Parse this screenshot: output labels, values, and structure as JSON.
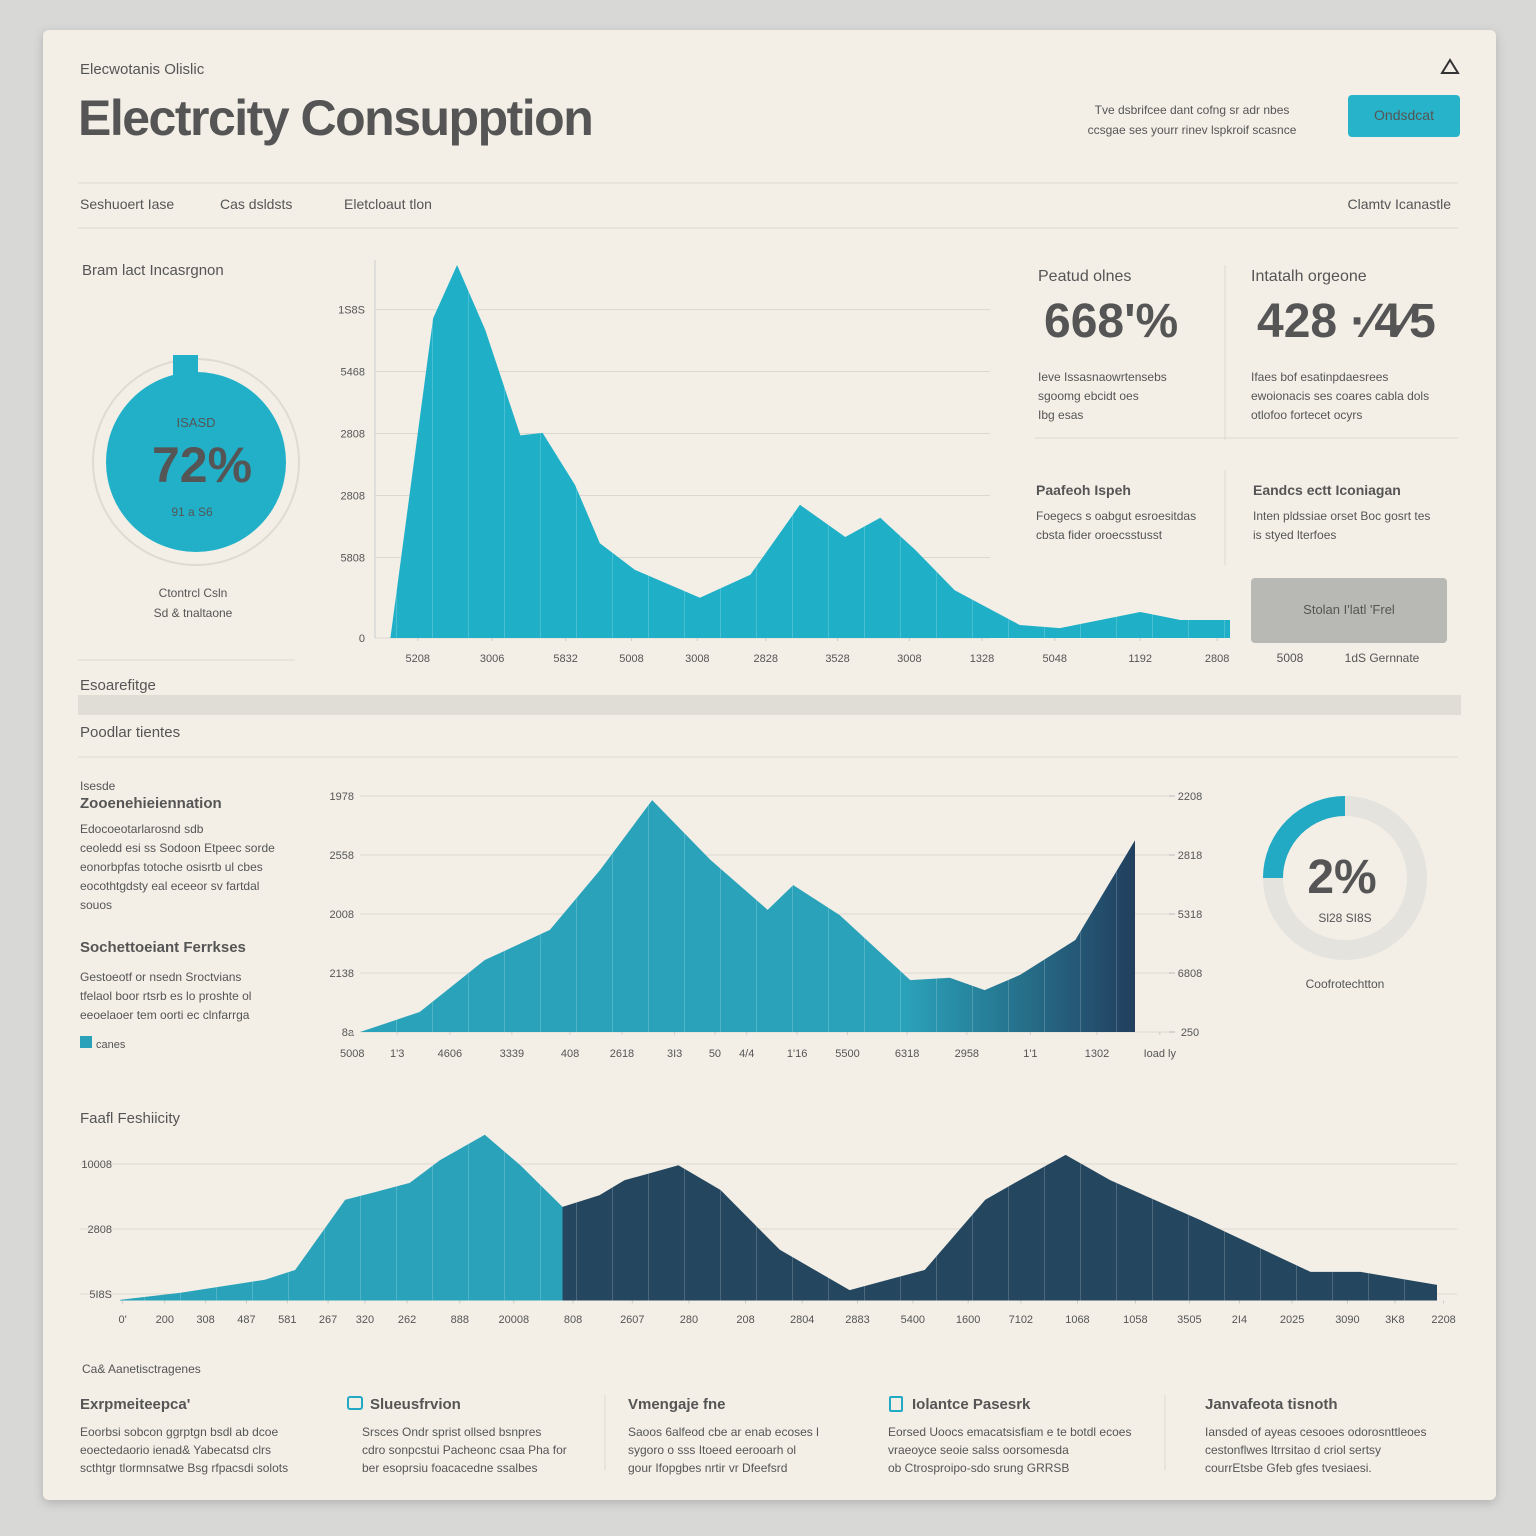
{
  "header": {
    "eyebrow": "Elecwotanis Olislic",
    "title": "Electrcity Consupption",
    "note": [
      "Tve dsbrifcee dant cofng sr adr nbes",
      "ccsgae ses yourr rinev lspkroif scasnce"
    ],
    "button": "Ondsdcat"
  },
  "nav": [
    "Seshuoert Iase",
    "Cas dsldsts",
    "Eletcloaut tlon",
    "Clamtv Icanastle"
  ],
  "left_panel": {
    "title": "Bram lact Incasrgnon",
    "gauge": {
      "label": "ISASD",
      "value": "72%",
      "sub": "91 a S6"
    },
    "caption": [
      "Ctontrcl Csln",
      "Sd & tnaltaone"
    ]
  },
  "stats": [
    {
      "label": "Peatud olnes",
      "value": "668'%",
      "desc": [
        "Ieve Issasnaowrtensebs",
        "sgoomg ebcidt oes",
        "Ibg esas"
      ]
    },
    {
      "label": "Intatalh orgeone",
      "value": "428 ·⁄4⁄5",
      "desc": [
        "Ifaes bof esatinpdaesrees",
        "ewoionacis ses coares cabla dols",
        "otlofoo fortecet ocyrs"
      ]
    }
  ],
  "features": [
    {
      "title": "Paafeoh Ispeh",
      "desc": [
        "Foegecs s oabgut esroesitdas",
        "cbsta fider oroecsstusst"
      ]
    },
    {
      "title": "Eandcs ectt Iconiagan",
      "desc": [
        "Inten pldssiae orset Boc gosrt tes",
        "is styed lterfoes"
      ]
    }
  ],
  "side_button": "Stolan I'latl 'Frel",
  "side_labels": [
    "5008",
    "1dS Gernnate"
  ],
  "section": {
    "label": "Esoarefitge",
    "subtitle": "Poodlar tientes"
  },
  "left_column": {
    "eyebrow": "Isesde",
    "heading": "Zooenehieiennation",
    "text": [
      "Edocoeotarlarosnd sdb",
      "ceoledd esi ss Sodoon Etpeec sorde",
      "eonorbpfas totoche osisrtb ul cbes",
      "eocothtgdsty eal eceeor sv fartdal",
      "souos"
    ],
    "heading2": "Sochettoeiant Ferrkses",
    "text2": [
      "Gestoeotf or nsedn Sroctvians",
      "tfelaol boor rtsrb es lo proshte ol",
      "eeoelaoer tem oorti ec clnfarrga"
    ],
    "legend": "canes"
  },
  "donut": {
    "value": "2%",
    "sub": "Sl28 SI8S",
    "caption": "Coofrotechtton"
  },
  "bottom_title": "Faafl Feshiicity",
  "footer": {
    "title": "Ca& Aanetisctragenes",
    "columns": [
      {
        "title": "Exrpmeiteepca'",
        "lines": [
          "Eoorbsi sobcon ggrptgn bsdl ab dcoe",
          "eoectedaorio ienad& Yabecatsd clrs",
          "scthtgr tlormnsatwe Bsg rfpacsdi solots"
        ]
      },
      {
        "title": "Slueusfrvion",
        "lines": [
          "Srsces Ondr sprist ollsed bsnpres",
          "cdro sonpcstui Pacheonc csaa Pha for",
          "ber esoprsiu foacacedne ssalbes"
        ]
      },
      {
        "title": "Vmengaje fne",
        "lines": [
          "Saoos 6alfeod cbe ar enab ecoses l",
          "sygoro o sss Itoeed eerooarh ol",
          "gour Ifopgbes nrtir vr Dfeefsrd"
        ]
      },
      {
        "title": "Iolantce Pasesrk",
        "lines": [
          "Eorsed Uoocs emacatsisfiam e te botdl ecoes",
          "vraeoyce seoie salss oorsomesda",
          "ob Ctrosproipo-sdo srung GRRSB"
        ]
      },
      {
        "title": "Janvafeota tisnoth",
        "lines": [
          "Iansded of ayeas cesooes odorosnttleoes",
          "cestonflwes ltrrsitao d criol sertsy",
          "courrEtsbe Gfeb gfes tvesiaesi."
        ]
      }
    ]
  },
  "chart_data": [
    {
      "type": "area",
      "color": "#1fb0c8",
      "grid": true,
      "xlim": [
        0,
        100
      ],
      "ylim": [
        0,
        6.1
      ],
      "x": [
        1.8,
        6.8,
        9.6,
        12.9,
        17,
        19.6,
        23.4,
        26.3,
        30.4,
        38,
        43.9,
        49.7,
        55,
        59.1,
        63.2,
        67.8,
        75.4,
        80.1,
        89.5,
        94.2,
        100
      ],
      "values": [
        0,
        5.16,
        6.02,
        4.97,
        3.27,
        3.31,
        2.47,
        1.53,
        1.1,
        0.65,
        1.02,
        2.15,
        1.63,
        1.94,
        1.42,
        0.77,
        0.21,
        0.16,
        0.42,
        0.29,
        0.29
      ],
      "yticks": [
        0,
        {
          "value": 1.3,
          "label": "5808"
        },
        {
          "value": 2.3,
          "label": "2808"
        },
        {
          "value": 3.3,
          "label": "2808"
        },
        {
          "value": 4.3,
          "label": "5468"
        },
        {
          "value": 5.3,
          "label": "1S8S"
        }
      ],
      "xticks": [
        {
          "value": 5,
          "label": "5208"
        },
        {
          "value": 13.7,
          "label": "3006"
        },
        {
          "value": 22.3,
          "label": "5832"
        },
        {
          "value": 30,
          "label": "5008"
        },
        {
          "value": 37.7,
          "label": "3008"
        },
        {
          "value": 45.7,
          "label": "2828"
        },
        {
          "value": 54.1,
          "label": "3528"
        },
        {
          "value": 62.5,
          "label": "3008"
        },
        {
          "value": 71,
          "label": "1328"
        },
        {
          "value": 79.5,
          "label": "5048"
        },
        {
          "value": 89.5,
          "label": "1192"
        },
        {
          "value": 98.5,
          "label": "2808"
        }
      ]
    },
    {
      "type": "area",
      "color": "#2aa3ba",
      "color_end": "#223f5e",
      "grid": true,
      "xlim": [
        0,
        100
      ],
      "ylim": [
        0,
        4
      ],
      "y2lim": [
        0,
        4
      ],
      "x": [
        0,
        7.7,
        16.1,
        24.5,
        31,
        37.7,
        45.2,
        52.6,
        55.9,
        61.9,
        71,
        76.1,
        80.6,
        85.2,
        92.3,
        100
      ],
      "values": [
        0,
        0.34,
        1.22,
        1.73,
        2.75,
        3.93,
        2.92,
        2.07,
        2.49,
        1.98,
        0.88,
        0.92,
        0.71,
        0.97,
        1.56,
        3.25
      ],
      "yticks": [
        {
          "value": 0,
          "label": "8a"
        },
        {
          "value": 1,
          "label": "2138"
        },
        {
          "value": 2,
          "label": "2008"
        },
        {
          "value": 3,
          "label": "2558"
        },
        {
          "value": 4,
          "label": "1978"
        }
      ],
      "y2ticks": [
        {
          "value": 0,
          "label": "250"
        },
        {
          "value": 1,
          "label": "6808"
        },
        {
          "value": 2,
          "label": "5318"
        },
        {
          "value": 3,
          "label": "2818"
        },
        {
          "value": 4,
          "label": "2208"
        }
      ],
      "xticks": [
        {
          "value": -1,
          "label": "5008"
        },
        {
          "value": 4.8,
          "label": "1'3"
        },
        {
          "value": 11.6,
          "label": "4606"
        },
        {
          "value": 19.6,
          "label": "3339"
        },
        {
          "value": 27.1,
          "label": "408"
        },
        {
          "value": 33.8,
          "label": "2618"
        },
        {
          "value": 40.6,
          "label": "3I3"
        },
        {
          "value": 45.8,
          "label": "50"
        },
        {
          "value": 49.9,
          "label": "4/4"
        },
        {
          "value": 56.4,
          "label": "1'16"
        },
        {
          "value": 62.9,
          "label": "5500"
        },
        {
          "value": 70.6,
          "label": "6318"
        },
        {
          "value": 78.3,
          "label": "2958"
        },
        {
          "value": 86.5,
          "label": "1'1"
        },
        {
          "value": 95.1,
          "label": "1302"
        },
        {
          "value": 103.2,
          "label": "Ioad ly"
        }
      ]
    },
    {
      "type": "area",
      "grid": true,
      "xlim": [
        0,
        100
      ],
      "ylim": [
        -0.1,
        2.5
      ],
      "series": [
        {
          "color": "#2aa3ba",
          "x": [
            0,
            4.6,
            11,
            13.3,
            17.1,
            19.4,
            22,
            24.3,
            27.7,
            30.4,
            33.6
          ],
          "values": [
            -0.09,
            0.02,
            0.22,
            0.37,
            1.45,
            1.57,
            1.71,
            2.06,
            2.45,
            1.98,
            1.34
          ]
        },
        {
          "color": "#24475f",
          "x": [
            33.6,
            36.4,
            38.3,
            42.4,
            45.6,
            50.1,
            55.4,
            61.1,
            65.7,
            68.3,
            71.8,
            75.2,
            82,
            90.4,
            94.2,
            100
          ],
          "values": [
            1.34,
            1.52,
            1.75,
            1.98,
            1.6,
            0.68,
            0.06,
            0.37,
            1.45,
            1.75,
            2.14,
            1.75,
            1.14,
            0.34,
            0.34,
            0.14
          ]
        }
      ],
      "yticks": [
        {
          "value": 0,
          "label": "5I8S"
        },
        {
          "value": 1,
          "label": "2808"
        },
        {
          "value": 2,
          "label": "10008"
        }
      ],
      "xticks": [
        {
          "value": 0.2,
          "label": "0'"
        },
        {
          "value": 3.4,
          "label": "200"
        },
        {
          "value": 6.5,
          "label": "308"
        },
        {
          "value": 9.6,
          "label": "487"
        },
        {
          "value": 12.7,
          "label": "581"
        },
        {
          "value": 15.8,
          "label": "267"
        },
        {
          "value": 18.6,
          "label": "320"
        },
        {
          "value": 21.8,
          "label": "262"
        },
        {
          "value": 25.8,
          "label": "888"
        },
        {
          "value": 29.9,
          "label": "20008"
        },
        {
          "value": 34.4,
          "label": "808"
        },
        {
          "value": 38.9,
          "label": "2607"
        },
        {
          "value": 43.2,
          "label": "280"
        },
        {
          "value": 47.5,
          "label": "208"
        },
        {
          "value": 51.8,
          "label": "2804"
        },
        {
          "value": 56,
          "label": "2883"
        },
        {
          "value": 60.2,
          "label": "5400"
        },
        {
          "value": 64.4,
          "label": "1600"
        },
        {
          "value": 68.4,
          "label": "7102"
        },
        {
          "value": 72.7,
          "label": "1068"
        },
        {
          "value": 77.1,
          "label": "1058"
        },
        {
          "value": 81.2,
          "label": "3505"
        },
        {
          "value": 85,
          "label": "2I4"
        },
        {
          "value": 89,
          "label": "2025"
        },
        {
          "value": 93.2,
          "label": "3090"
        },
        {
          "value": 96.8,
          "label": "3K8"
        },
        {
          "value": 100.5,
          "label": "2208"
        }
      ]
    }
  ]
}
